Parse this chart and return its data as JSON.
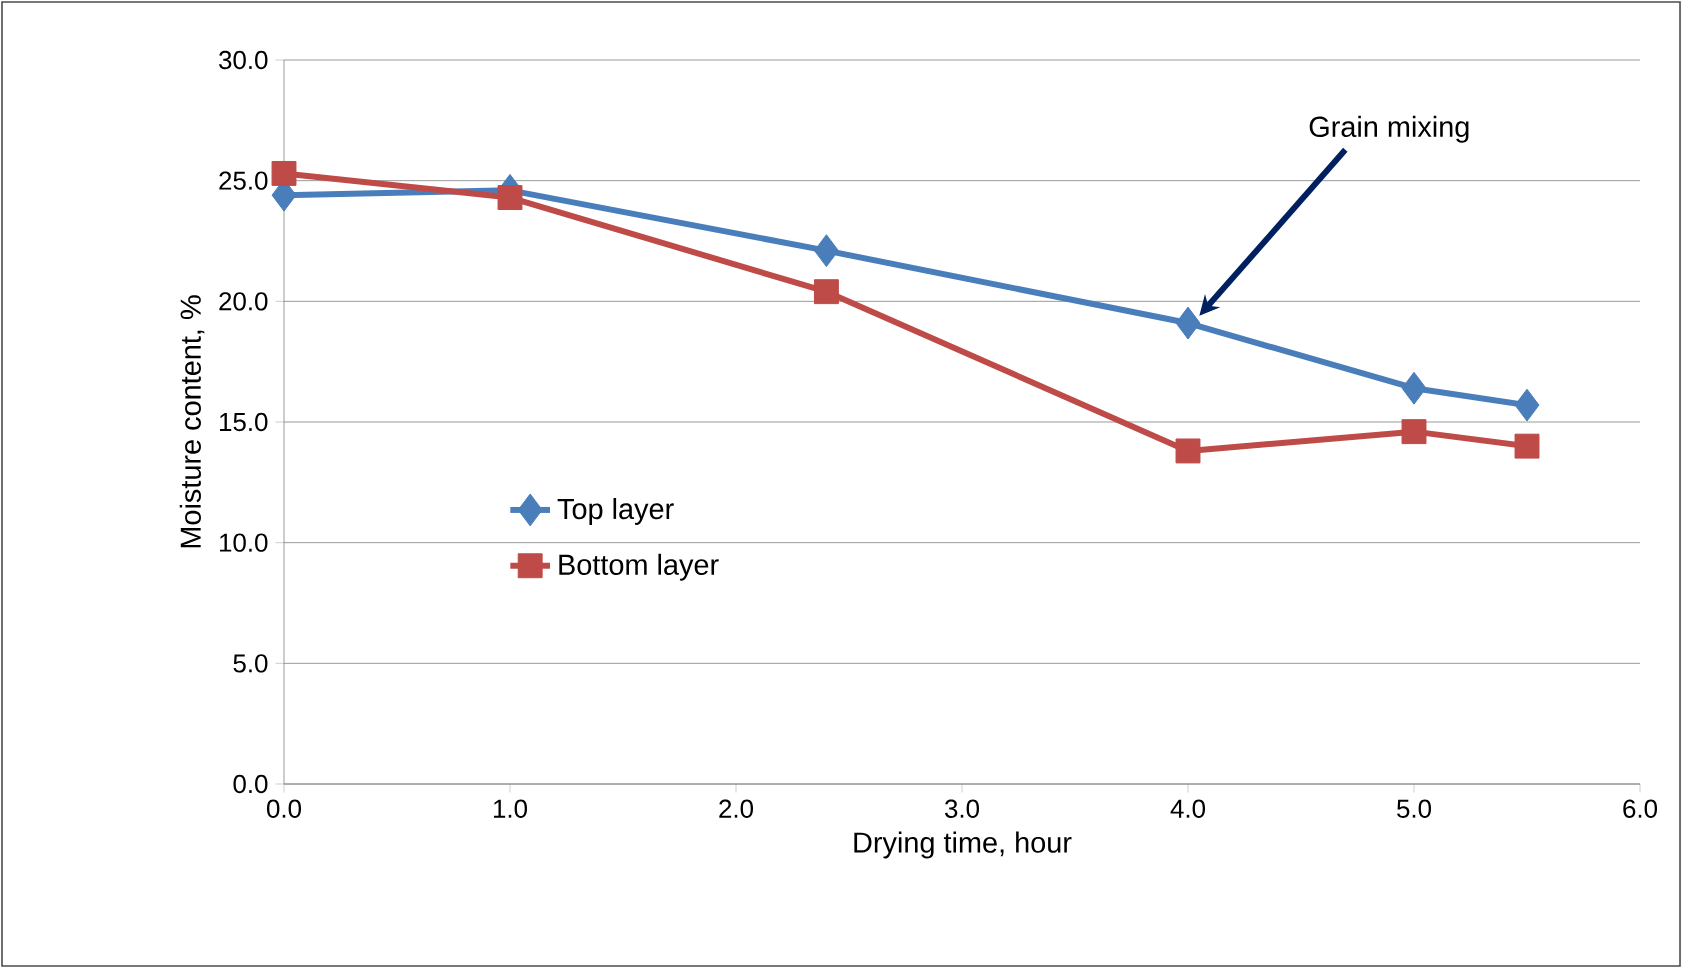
{
  "chart_data": {
    "type": "line",
    "xlabel": "Drying time, hour",
    "ylabel": "Moisture content, %",
    "xlim": [
      0,
      6
    ],
    "ylim": [
      0,
      30
    ],
    "xticks": [
      {
        "value": 0,
        "label": "0.0"
      },
      {
        "value": 1,
        "label": "1.0"
      },
      {
        "value": 2,
        "label": "2.0"
      },
      {
        "value": 3,
        "label": "3.0"
      },
      {
        "value": 4,
        "label": "4.0"
      },
      {
        "value": 5,
        "label": "5.0"
      },
      {
        "value": 6,
        "label": "6.0"
      }
    ],
    "yticks": [
      {
        "value": 0,
        "label": "0.0"
      },
      {
        "value": 5,
        "label": "5.0"
      },
      {
        "value": 10,
        "label": "10.0"
      },
      {
        "value": 15,
        "label": "15.0"
      },
      {
        "value": 20,
        "label": "20.0"
      },
      {
        "value": 25,
        "label": "25.0"
      },
      {
        "value": 30,
        "label": "30.0"
      }
    ],
    "grid": "y",
    "legend": "left",
    "line_style": "solid",
    "annotations": [
      {
        "text": "Grain mixing",
        "x": 4.05,
        "y": 19.4
      }
    ],
    "series": [
      {
        "name": "Top layer",
        "color": "#4a7ebb",
        "marker": "diamond",
        "x": [
          0,
          1,
          2.4,
          4,
          5,
          5.5
        ],
        "values": [
          24.4,
          24.6,
          22.1,
          19.1,
          16.4,
          15.7
        ]
      },
      {
        "name": "Bottom layer",
        "color": "#be4b48",
        "marker": "square",
        "x": [
          0,
          1,
          2.4,
          4,
          5,
          5.5
        ],
        "values": [
          25.3,
          24.3,
          20.4,
          13.8,
          14.6,
          14.0
        ]
      }
    ]
  }
}
